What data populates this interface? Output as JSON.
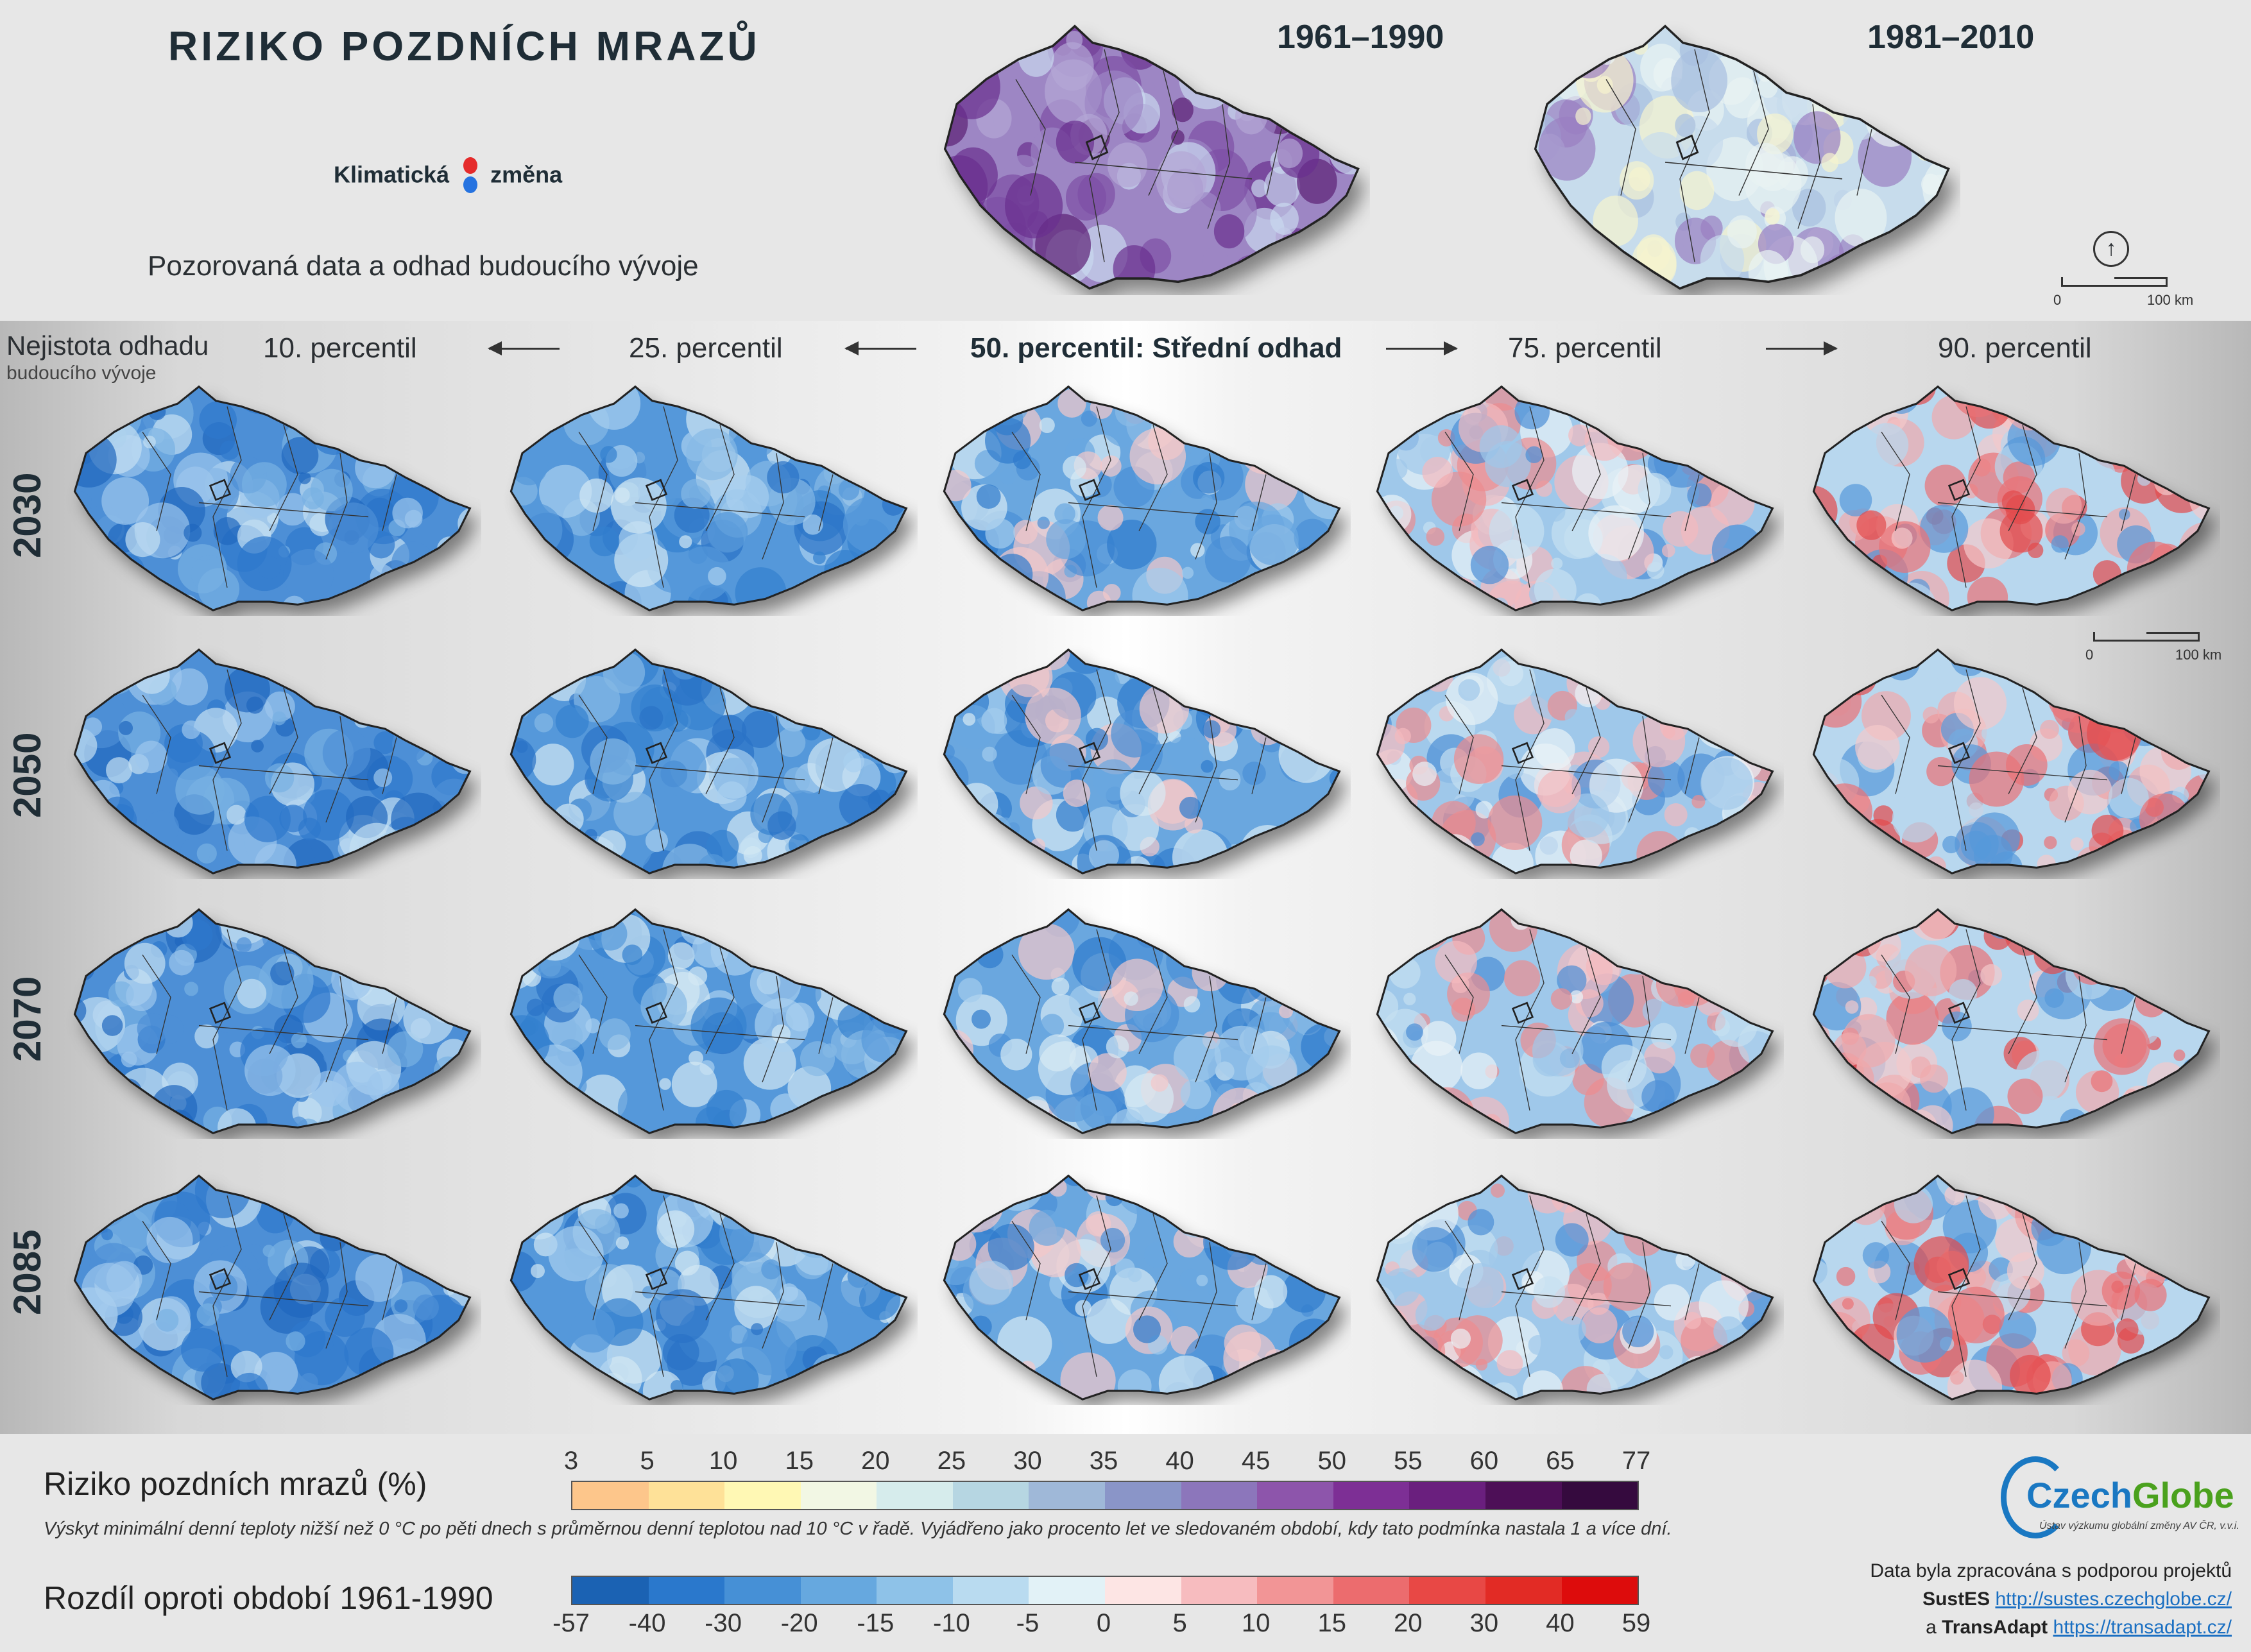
{
  "header": {
    "title": "RIZIKO POZDNÍCH MRAZŮ",
    "brand_left": "Klimatická",
    "brand_right": "změna",
    "subtitle": "Pozorovaná data a odhad budoucího vývoje"
  },
  "observed": {
    "periods": [
      "1961–1990",
      "1981–2010"
    ],
    "scale_labels": [
      "0",
      "100 km"
    ]
  },
  "uncertainty": {
    "title": "Nejistota odhadu",
    "subtitle": "budoucího vývoje"
  },
  "percentiles": [
    "10. percentil",
    "25. percentil",
    "50. percentil: Střední odhad",
    "75. percentil",
    "90. percentil"
  ],
  "years": [
    "2030",
    "2050",
    "2070",
    "2085"
  ],
  "future_scale_labels": [
    "0",
    "100 km"
  ],
  "legend": {
    "risk_title": "Riziko pozdních mrazů (%)",
    "risk_description": "Výskyt minimální denní teploty nižší než 0 °C po pěti dnech s průměrnou denní teplotou nad 10 °C v řadě. Vyjádřeno jako procento let ve sledovaném období, kdy tato podmínka nastala 1 a více dní.",
    "risk_ticks": [
      "3",
      "5",
      "10",
      "15",
      "20",
      "25",
      "30",
      "35",
      "40",
      "45",
      "50",
      "55",
      "60",
      "65",
      "77"
    ],
    "risk_colors": [
      "#fdc68b",
      "#fee198",
      "#fff8b4",
      "#f2f7e4",
      "#d6ecec",
      "#b6d6e2",
      "#9fb8d8",
      "#8a95c8",
      "#8c76bb",
      "#8d55ab",
      "#7d2f95",
      "#6a1f7e",
      "#4d0f57",
      "#350a3e"
    ],
    "diff_title": "Rozdíl oproti období 1961-1990",
    "diff_ticks": [
      "-57",
      "-40",
      "-30",
      "-20",
      "-15",
      "-10",
      "-5",
      "0",
      "5",
      "10",
      "15",
      "20",
      "30",
      "40",
      "59"
    ],
    "diff_colors": [
      "#1b62b3",
      "#2a78cc",
      "#4690d6",
      "#66a8df",
      "#8ec2e8",
      "#b9dbf0",
      "#e2f2f7",
      "#fde5e4",
      "#f7bcbf",
      "#f29596",
      "#ec6c6e",
      "#e84845",
      "#e22b25",
      "#dd0c0c"
    ]
  },
  "footer": {
    "logo_blue": "Czech",
    "logo_green": "Globe",
    "logo_sub": "Ústav výzkumu globální změny AV ČR, v.v.i.",
    "support_line": "Data byla zpracována s podporou projektů",
    "project1_name": "SustES",
    "project1_url": "http://sustes.czechglobe.cz/",
    "conj": "a",
    "project2_name": "TransAdapt",
    "project2_url": "https://transadapt.cz/"
  },
  "colors": {
    "dark_text": "#1f2d36",
    "blue_map": "#5d9fdd",
    "purple_map": "#8b55ab",
    "red_map": "#ec6c6e"
  }
}
